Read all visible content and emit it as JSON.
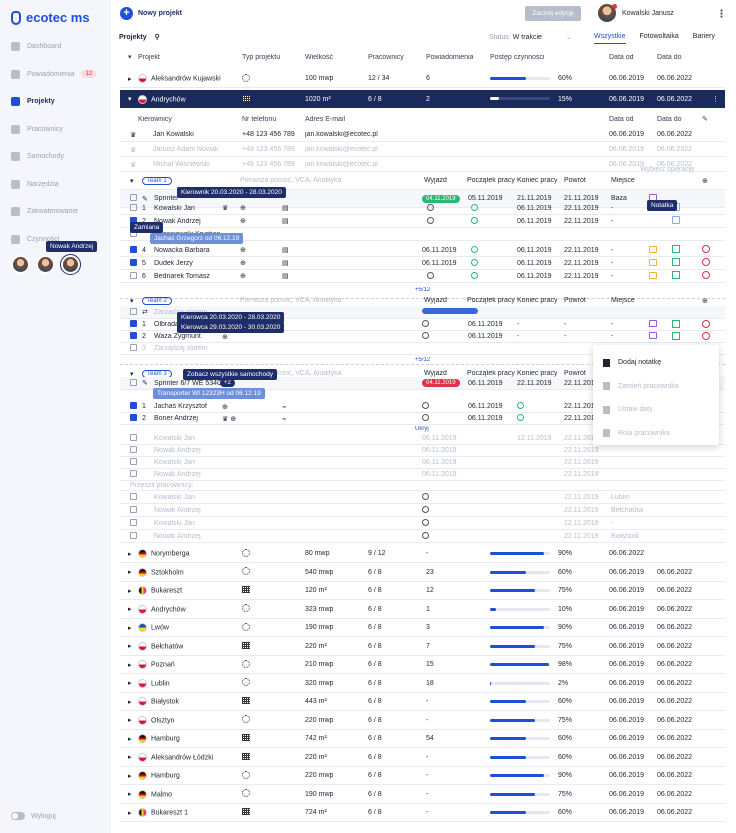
{
  "app": {
    "logo": "ecotec ms"
  },
  "sidebar": {
    "items": [
      {
        "label": "Dashboard"
      },
      {
        "label": "Powiadomienia",
        "badge": "12"
      },
      {
        "label": "Projekty"
      },
      {
        "label": "Pracownicy"
      },
      {
        "label": "Samochody"
      },
      {
        "label": "Narzędzia"
      },
      {
        "label": "Zakwaterowanie"
      },
      {
        "label": "Czynności"
      }
    ],
    "avatar_tooltip": "Nowak Andrzej",
    "logout": "Wyloguj"
  },
  "topbar": {
    "new_project": "Nowy projekt",
    "start_edit": "Zacznij edycję",
    "user_name": "Kowalski Janusz"
  },
  "subbar": {
    "projects_label": "Projekty",
    "status_label": "Status:",
    "status_value": "W trakcie",
    "tabs": [
      "Wszystkie",
      "Fotowoltaika",
      "Bariery"
    ]
  },
  "headers": [
    "Projekt",
    "Typ projektu",
    "Wielkość",
    "Pracownicy",
    "Powiadomienia",
    "Postęp czynności",
    "Data od",
    "Data do"
  ],
  "top_projects": [
    {
      "name": "Aleksandrów Kujawski",
      "flag": "pl",
      "type": "sun",
      "size": "100 mwp",
      "workers": "12 / 34",
      "notif": "6",
      "progress": 60,
      "pct": "60%",
      "from": "06.06.2019",
      "to": "06.06.2022"
    },
    {
      "name": "Andrychów",
      "flag": "pl",
      "type": "panel",
      "size": "1020 m²",
      "workers": "6 / 8",
      "notif": "2",
      "progress": 15,
      "pct": "15%",
      "from": "06.06.2019",
      "to": "06.06.2022"
    }
  ],
  "managers": {
    "headers": [
      "Kierownicy",
      "Nr telefonu",
      "Adres E-mail",
      "Data od",
      "Data do"
    ],
    "rows": [
      {
        "name": "Jan Kowalski",
        "phone": "+48 123 456 789",
        "email": "jan.kowalski@ecotec.pl",
        "from": "06.06.2019",
        "to": "06.06.2022",
        "faded": false
      },
      {
        "name": "Janusz Adam Nowak",
        "phone": "+48 123 456 789",
        "email": "jan.kowalski@ecotec.pl",
        "from": "06.06.2019",
        "to": "06.06.2022",
        "faded": true
      },
      {
        "name": "Michał Wiśniewski",
        "phone": "+48 123 456 789",
        "email": "jan.kowalski@ecotec.pl",
        "from": "06.06.2019",
        "to": "06.06.2022",
        "faded": true
      }
    ],
    "choose_op": "Wybierz operację"
  },
  "team1": {
    "label": "Team 1",
    "placeholder": "Pierwsza pomoc, VCA, Analityka",
    "headers": [
      "Wyjazd",
      "Początek pracy",
      "Koniec pracy",
      "Powrót",
      "Miejsce"
    ],
    "vehicle": {
      "name": "Sprinter",
      "dep": "04.11.2019",
      "start": "05.11.2019",
      "end": "21.11.2019",
      "ret": "21.11.2019",
      "place": "Baza"
    },
    "tooltip_leader": "Kierownik 20.03.2020 - 28.03.2020",
    "tooltip_note": "Notatka",
    "tooltip_swap": "Zamiana",
    "tooltip_swap2": "Jachaś Grzegorz od 06.12.19",
    "members": [
      {
        "n": "1",
        "name": "Kowalski Jan",
        "end": "06.11.2019",
        "ret": "22.11.2019",
        "place": "-"
      },
      {
        "n": "2",
        "name": "Nowak Andrzej",
        "end": "06.11.2019",
        "ret": "22.11.2019",
        "place": "-"
      },
      {
        "n": "",
        "name": "Wrzeniowski Krystian",
        "end": "",
        "ret": "",
        "place": ""
      },
      {
        "n": "4",
        "name": "Nowacka Barbara",
        "dep": "06.11.2019",
        "end": "06.11.2019",
        "ret": "22.11.2019",
        "place": "-"
      },
      {
        "n": "5",
        "name": "Dudek Jerzy",
        "dep": "06.11.2019",
        "end": "06.11.2019",
        "ret": "22.11.2019",
        "place": "-"
      },
      {
        "n": "6",
        "name": "Bednarek Tomasz",
        "end": "06.11.2019",
        "ret": "22.11.2019",
        "place": "-"
      }
    ],
    "more": "+5/12"
  },
  "team2": {
    "label": "Team 2",
    "placeholder": "Pierwsza pomoc, VCA, Analityka",
    "headers": [
      "Wyjazd",
      "Początek pracy",
      "Koniec pracy",
      "Powrót",
      "Miejsce"
    ],
    "slot": "Zarządzaj slotem",
    "tooltip_driver1": "Kierowca 20.03.2020 - 28.03.2020",
    "tooltip_driver2": "Kierowca 29.03.2020 - 30.03.2020",
    "members": [
      {
        "n": "1",
        "name": "Olbrada",
        "start": "06.11.2019",
        "end": "-",
        "ret": "-",
        "place": "-"
      },
      {
        "n": "2",
        "name": "Waza Zygmunt",
        "start": "06.11.2019",
        "end": "-",
        "ret": "-",
        "place": "-"
      }
    ],
    "slot2": "Zarządzaj slotem",
    "more": "+5/12"
  },
  "popup": {
    "items": [
      "Dodaj notatkę",
      "Zamień pracownika",
      "Ustaw daty",
      "Rola pracownika"
    ]
  },
  "team3": {
    "label": "Team 3",
    "placeholder": "Pierwsza pomoc, VCA, Analityka",
    "headers": [
      "Wyjazd",
      "Początek pracy",
      "Koniec pracy",
      "Powrót",
      "Miejsce"
    ],
    "tooltip_cars": "Zobacz wszystkie samochody",
    "vehicle": {
      "name": "Sprinter 6/7 WE 534CV",
      "count": "+2",
      "dep": "04.11.2019",
      "start": "06.11.2019",
      "end": "22.11.2019",
      "ret": "22.11.2019"
    },
    "vehicle2": "Transporter WI 12323H od 06.12.19",
    "members": [
      {
        "n": "1",
        "name": "Jachaś Krzysztof",
        "start": "06.11.2019",
        "ret": "22.11.2019"
      },
      {
        "n": "2",
        "name": "Boner Andrzej",
        "start": "06.11.2019",
        "ret": "22.11.2019"
      }
    ],
    "hidden": "Ukryj",
    "faded_members": [
      {
        "name": "Kowalski Jan",
        "dep": "06.11.2019",
        "end": "12.11.2019",
        "ret": "22.11.2019"
      },
      {
        "name": "Nowak Andrzej",
        "dep": "06.11.2019",
        "end": "",
        "ret": "22.11.2019"
      },
      {
        "name": "Kowalski Jan",
        "dep": "06.11.2019",
        "end": "",
        "ret": "22.11.2019"
      },
      {
        "name": "Nowak Andrzej",
        "dep": "06.11.2019",
        "end": "",
        "ret": "22.11.2019"
      }
    ],
    "past_label": "Przeszli pracownicy:",
    "past_members": [
      {
        "name": "Kowalski Jan",
        "ret": "22.11.2019",
        "place": "Lublin"
      },
      {
        "name": "Nowak Andrzej",
        "ret": "22.11.2019",
        "place": "Bełchatów"
      },
      {
        "name": "Kowalski Jan",
        "ret": "22.11.2019",
        "place": "-"
      },
      {
        "name": "Nowak Andrzej",
        "ret": "22.11.2019",
        "place": "Białystok"
      }
    ]
  },
  "projects": [
    {
      "name": "Norymberga",
      "flag": "de",
      "type": "sun",
      "size": "80 mwp",
      "workers": "9 / 12",
      "notif": "-",
      "progress": 90,
      "pct": "90%",
      "from": "06.06.2022",
      "to": ""
    },
    {
      "name": "Sztokholm",
      "flag": "de",
      "type": "sun",
      "size": "540 mwp",
      "workers": "6 / 8",
      "notif": "23",
      "progress": 60,
      "pct": "60%",
      "from": "06.06.2019",
      "to": "06.06.2022"
    },
    {
      "name": "Bukareszt",
      "flag": "be",
      "type": "panel",
      "size": "120 m²",
      "workers": "6 / 8",
      "notif": "12",
      "progress": 75,
      "pct": "75%",
      "from": "06.06.2019",
      "to": "06.06.2022"
    },
    {
      "name": "Andrychów",
      "flag": "pl",
      "type": "sun",
      "size": "323 mwp",
      "workers": "6 / 8",
      "notif": "1",
      "progress": 10,
      "pct": "10%",
      "from": "06.06.2019",
      "to": "06.06.2022"
    },
    {
      "name": "Lwów",
      "flag": "ua",
      "type": "sun",
      "size": "190 mwp",
      "workers": "6 / 8",
      "notif": "3",
      "progress": 90,
      "pct": "90%",
      "from": "06.06.2019",
      "to": "06.06.2022"
    },
    {
      "name": "Bełchatów",
      "flag": "pl",
      "type": "panel",
      "size": "220 m²",
      "workers": "6 / 8",
      "notif": "7",
      "progress": 75,
      "pct": "75%",
      "from": "06.06.2019",
      "to": "06.06.2022"
    },
    {
      "name": "Poznań",
      "flag": "pl",
      "type": "sun",
      "size": "210 mwp",
      "workers": "6 / 8",
      "notif": "15",
      "progress": 98,
      "pct": "98%",
      "from": "06.06.2019",
      "to": "06.06.2022"
    },
    {
      "name": "Lublin",
      "flag": "pl",
      "type": "sun",
      "size": "320 mwp",
      "workers": "6 / 8",
      "notif": "18",
      "progress": 2,
      "pct": "2%",
      "from": "06.06.2019",
      "to": "06.06.2022"
    },
    {
      "name": "Białystok",
      "flag": "pl",
      "type": "panel",
      "size": "443 m²",
      "workers": "6 / 8",
      "notif": "-",
      "progress": 60,
      "pct": "60%",
      "from": "06.06.2019",
      "to": "06.06.2022"
    },
    {
      "name": "Olsztyn",
      "flag": "pl",
      "type": "sun",
      "size": "220 mwp",
      "workers": "6 / 8",
      "notif": "-",
      "progress": 75,
      "pct": "75%",
      "from": "06.06.2019",
      "to": "06.06.2022"
    },
    {
      "name": "Hamburg",
      "flag": "de",
      "type": "panel",
      "size": "742 m²",
      "workers": "6 / 8",
      "notif": "54",
      "progress": 60,
      "pct": "60%",
      "from": "06.06.2019",
      "to": "06.06.2022"
    },
    {
      "name": "Aleksandrów Łódzki",
      "flag": "pl",
      "type": "panel",
      "size": "220 m²",
      "workers": "6 / 8",
      "notif": "-",
      "progress": 60,
      "pct": "60%",
      "from": "06.06.2019",
      "to": "06.06.2022"
    },
    {
      "name": "Hamburg",
      "flag": "de",
      "type": "sun",
      "size": "220 mwp",
      "workers": "6 / 8",
      "notif": "-",
      "progress": 90,
      "pct": "90%",
      "from": "06.06.2019",
      "to": "06.06.2022"
    },
    {
      "name": "Malmo",
      "flag": "de",
      "type": "sun",
      "size": "190 mwp",
      "workers": "6 / 8",
      "notif": "-",
      "progress": 75,
      "pct": "75%",
      "from": "06.06.2019",
      "to": "06.06.2022"
    },
    {
      "name": "Bukareszt 1",
      "flag": "be",
      "type": "panel",
      "size": "724 m²",
      "workers": "6 / 8",
      "notif": "-",
      "progress": 60,
      "pct": "60%",
      "from": "06.06.2019",
      "to": "06.06.2022"
    }
  ]
}
